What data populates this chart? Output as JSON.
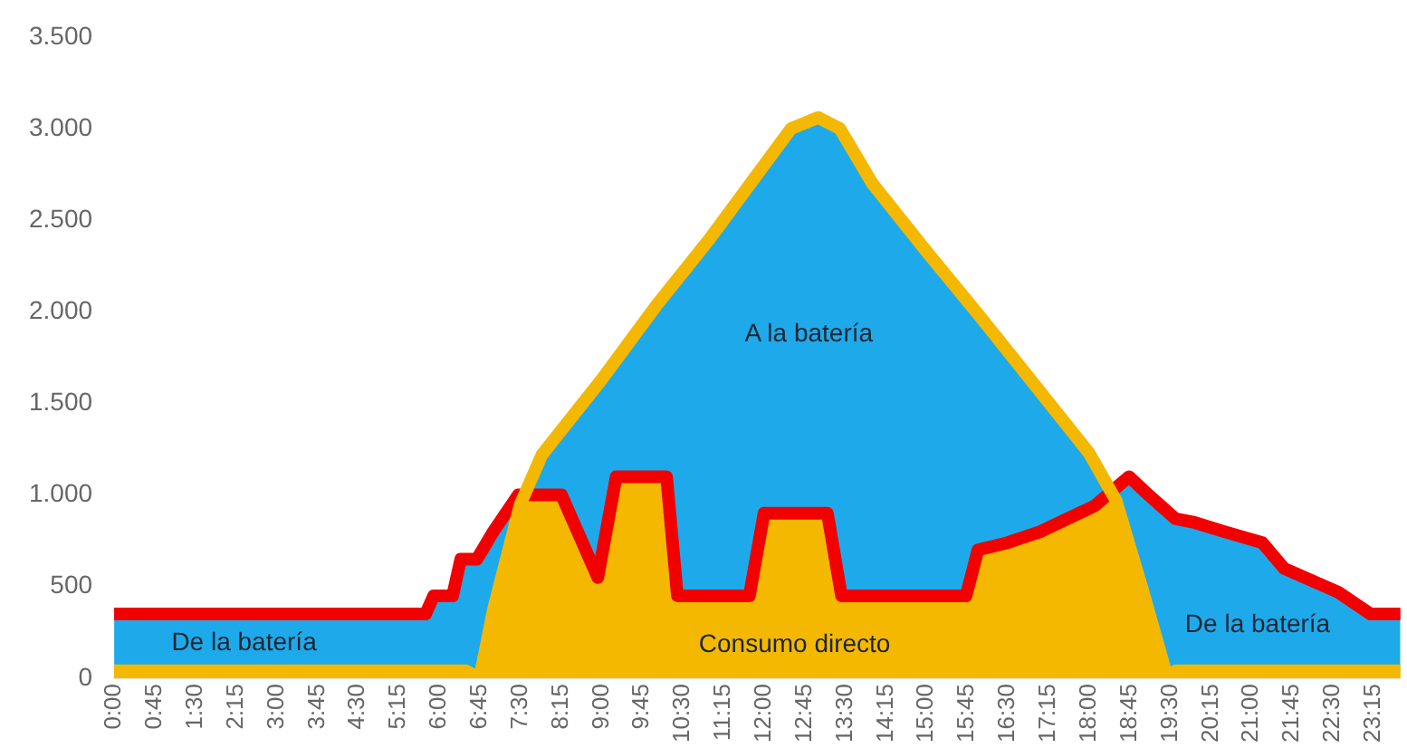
{
  "chart_data": {
    "type": "line",
    "marker": "none",
    "line_style": "solid",
    "xlim": [
      0,
      23.75
    ],
    "xticks": [
      {
        "value": 0,
        "label": "0:00"
      },
      {
        "value": 0.75,
        "label": "0:45"
      },
      {
        "value": 1.5,
        "label": "1:30"
      },
      {
        "value": 2.25,
        "label": "2:15"
      },
      {
        "value": 3,
        "label": "3:00"
      },
      {
        "value": 3.75,
        "label": "3:45"
      },
      {
        "value": 4.5,
        "label": "4:30"
      },
      {
        "value": 5.25,
        "label": "5:15"
      },
      {
        "value": 6,
        "label": "6:00"
      },
      {
        "value": 6.75,
        "label": "6:45"
      },
      {
        "value": 7.5,
        "label": "7:30"
      },
      {
        "value": 8.25,
        "label": "8:15"
      },
      {
        "value": 9,
        "label": "9:00"
      },
      {
        "value": 9.75,
        "label": "9:45"
      },
      {
        "value": 10.5,
        "label": "10:30"
      },
      {
        "value": 11.25,
        "label": "11:15"
      },
      {
        "value": 12,
        "label": "12:00"
      },
      {
        "value": 12.75,
        "label": "12:45"
      },
      {
        "value": 13.5,
        "label": "13:30"
      },
      {
        "value": 14.25,
        "label": "14:15"
      },
      {
        "value": 15,
        "label": "15:00"
      },
      {
        "value": 15.75,
        "label": "15:45"
      },
      {
        "value": 16.5,
        "label": "16:30"
      },
      {
        "value": 17.25,
        "label": "17:15"
      },
      {
        "value": 18,
        "label": "18:00"
      },
      {
        "value": 18.75,
        "label": "18:45"
      },
      {
        "value": 19.5,
        "label": "19:30"
      },
      {
        "value": 20.25,
        "label": "20:15"
      },
      {
        "value": 21,
        "label": "21:00"
      },
      {
        "value": 21.75,
        "label": "21:45"
      },
      {
        "value": 22.5,
        "label": "22:30"
      },
      {
        "value": 23.25,
        "label": "23:15"
      }
    ],
    "ylim": [
      0,
      3500
    ],
    "yticks": [
      0,
      500,
      {
        "value": 1000,
        "label": "1.000"
      },
      {
        "value": 1500,
        "label": "1.500"
      },
      {
        "value": 2000,
        "label": "2.000"
      },
      {
        "value": 2500,
        "label": "2.500"
      },
      {
        "value": 3000,
        "label": "3.000"
      },
      {
        "value": 3500,
        "label": "3.500"
      }
    ],
    "series": [
      {
        "type": "area",
        "color": "#f5b800",
        "x": [
          0,
          6.5,
          6.75,
          7,
          7.5,
          7.9,
          9,
          10,
          11,
          12,
          12.5,
          13,
          13.4,
          14,
          15,
          16,
          17,
          18,
          18.5,
          19,
          19.45,
          19.6,
          23.75
        ],
        "values": [
          40,
          40,
          0,
          370,
          950,
          1220,
          1630,
          2030,
          2400,
          2800,
          3000,
          3060,
          3000,
          2700,
          2330,
          1970,
          1600,
          1230,
          970,
          470,
          0,
          40,
          40
        ]
      },
      {
        "color": "#f20000",
        "x": [
          0,
          5.75,
          5.9,
          6.25,
          6.4,
          6.7,
          7,
          7.46,
          8.26,
          8.93,
          9.27,
          10.2,
          10.4,
          11.73,
          12,
          13.17,
          13.43,
          15.73,
          15.95,
          16.5,
          17.1,
          17.6,
          18.1,
          18.74,
          19.1,
          19.6,
          19.95,
          20.5,
          21.2,
          21.6,
          22.6,
          23.2,
          23.75
        ],
        "values": [
          350,
          350,
          450,
          450,
          650,
          650,
          800,
          1000,
          1000,
          550,
          1100,
          1100,
          450,
          450,
          900,
          900,
          450,
          450,
          700,
          740,
          800,
          870,
          940,
          1100,
          1000,
          870,
          850,
          800,
          740,
          600,
          470,
          350,
          350
        ]
      }
    ],
    "annotations": [
      "A la batería",
      "De la batería",
      "De la batería",
      "Consumo directo"
    ]
  }
}
